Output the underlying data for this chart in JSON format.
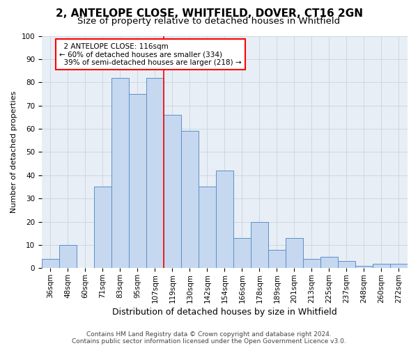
{
  "title": "2, ANTELOPE CLOSE, WHITFIELD, DOVER, CT16 2GN",
  "subtitle": "Size of property relative to detached houses in Whitfield",
  "xlabel": "Distribution of detached houses by size in Whitfield",
  "ylabel": "Number of detached properties",
  "footer_line1": "Contains HM Land Registry data © Crown copyright and database right 2024.",
  "footer_line2": "Contains public sector information licensed under the Open Government Licence v3.0.",
  "bin_labels": [
    "36sqm",
    "48sqm",
    "60sqm",
    "71sqm",
    "83sqm",
    "95sqm",
    "107sqm",
    "119sqm",
    "130sqm",
    "142sqm",
    "154sqm",
    "166sqm",
    "178sqm",
    "189sqm",
    "201sqm",
    "213sqm",
    "225sqm",
    "237sqm",
    "248sqm",
    "260sqm",
    "272sqm"
  ],
  "bar_heights": [
    4,
    10,
    0,
    35,
    82,
    75,
    82,
    66,
    59,
    35,
    42,
    13,
    20,
    8,
    13,
    4,
    5,
    3,
    1,
    2,
    2
  ],
  "bar_color": "#c5d8ef",
  "bar_edge_color": "#5b8fc9",
  "property_line_bin_index": 7,
  "property_label": "2 ANTELOPE CLOSE: 116sqm",
  "smaller_pct": "60%",
  "smaller_count": 334,
  "larger_pct": "39%",
  "larger_count": 218,
  "line_color": "red",
  "ylim": [
    0,
    100
  ],
  "yticks": [
    0,
    10,
    20,
    30,
    40,
    50,
    60,
    70,
    80,
    90,
    100
  ],
  "grid_color": "#c8d4e0",
  "bg_color": "#e8eef5",
  "title_fontsize": 11,
  "subtitle_fontsize": 9.5,
  "ylabel_fontsize": 8,
  "xlabel_fontsize": 9,
  "tick_fontsize": 7.5,
  "annotation_fontsize": 7.5,
  "footer_fontsize": 6.5
}
